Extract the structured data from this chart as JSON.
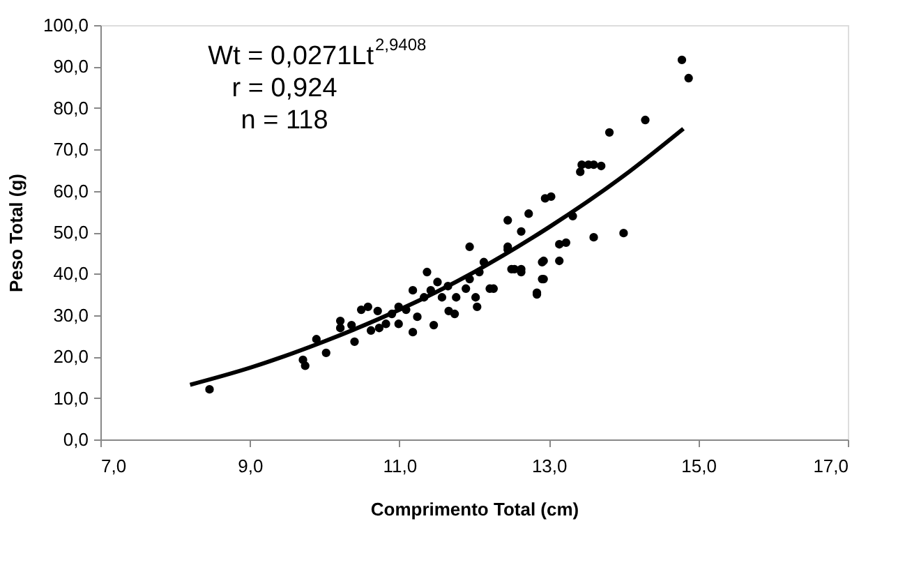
{
  "chart_data": {
    "type": "scatter",
    "xlabel": "Comprimento Total (cm)",
    "ylabel": "Peso Total (g)",
    "xlim": [
      7,
      17
    ],
    "xticks": [
      {
        "value": 7,
        "label": "7,0"
      },
      {
        "value": 9,
        "label": "9,0"
      },
      {
        "value": 11,
        "label": "11,0"
      },
      {
        "value": 13,
        "label": "13,0"
      },
      {
        "value": 15,
        "label": "15,0"
      },
      {
        "value": 17,
        "label": "17,0"
      }
    ],
    "ylim": [
      0,
      100
    ],
    "yticks": [
      {
        "value": 0,
        "label": "0,0"
      },
      {
        "value": 10,
        "label": "10,0"
      },
      {
        "value": 20,
        "label": "20,0"
      },
      {
        "value": 30,
        "label": "30,0"
      },
      {
        "value": 40,
        "label": "40,0"
      },
      {
        "value": 50,
        "label": "50,0"
      },
      {
        "value": 60,
        "label": "60,0"
      },
      {
        "value": 70,
        "label": "70,0"
      },
      {
        "value": 80,
        "label": "80,0"
      },
      {
        "value": 90,
        "label": "90,0"
      },
      {
        "value": 100,
        "label": "100,0"
      }
    ],
    "grid": false,
    "legend": false,
    "marker": "circle",
    "annotations": [
      "Wt = 0,0271Lt$^{2,9408}$",
      "r = 0,924",
      "n = 118"
    ],
    "series": [
      {
        "color": "#000000",
        "x": [
          8.46,
          9.71,
          9.74,
          9.89,
          10.02,
          10.21,
          10.21,
          10.36,
          10.4,
          10.49,
          10.58,
          10.62,
          10.71,
          10.73,
          10.82,
          10.9,
          10.99,
          10.99,
          11.09,
          11.18,
          11.18,
          11.24,
          11.33,
          11.37,
          11.42,
          11.46,
          11.51,
          11.57,
          11.65,
          11.66,
          11.74,
          11.76,
          11.89,
          11.94,
          11.94,
          12.02,
          12.04,
          12.07,
          12.13,
          12.21,
          12.26,
          12.45,
          12.5,
          12.63,
          12.91,
          12.91,
          12.84,
          14.78,
          14.87,
          14.29,
          13.81,
          13.42,
          13.44,
          13.53,
          13.6,
          13.7,
          12.95,
          13.03,
          12.73,
          12.45,
          12.63,
          13.32,
          12.45,
          13.14,
          13.23,
          13.6,
          14.0,
          12.93,
          13.14,
          12.54,
          12.63,
          12.93,
          12.84
        ],
        "values": [
          12.1,
          19.2,
          17.8,
          24.2,
          20.9,
          28.6,
          26.9,
          27.6,
          23.6,
          31.3,
          32.0,
          26.3,
          31.0,
          26.9,
          27.9,
          30.3,
          32.0,
          27.9,
          31.3,
          36.0,
          25.9,
          29.6,
          34.3,
          40.4,
          36.0,
          27.6,
          38.0,
          34.3,
          37.0,
          31.0,
          30.3,
          34.3,
          36.4,
          38.7,
          46.5,
          34.3,
          32.0,
          40.4,
          42.8,
          36.4,
          36.4,
          46.5,
          41.1,
          41.1,
          42.8,
          38.7,
          35.4,
          91.6,
          87.2,
          77.1,
          74.1,
          64.6,
          66.3,
          66.3,
          66.3,
          66.0,
          58.2,
          58.6,
          54.5,
          52.9,
          50.2,
          53.9,
          45.8,
          47.1,
          47.5,
          48.8,
          49.8,
          43.1,
          43.1,
          41.1,
          40.4,
          38.7,
          35.0
        ]
      },
      {
        "type": "line",
        "color": "#000000",
        "marker": "none",
        "line_style": "solid",
        "x": [
          8.2,
          9,
          10,
          11,
          12,
          13,
          14,
          14.8
        ],
        "values": [
          13.2,
          17.3,
          23.7,
          31.3,
          40.4,
          51.2,
          63.6,
          75.0
        ]
      }
    ]
  }
}
